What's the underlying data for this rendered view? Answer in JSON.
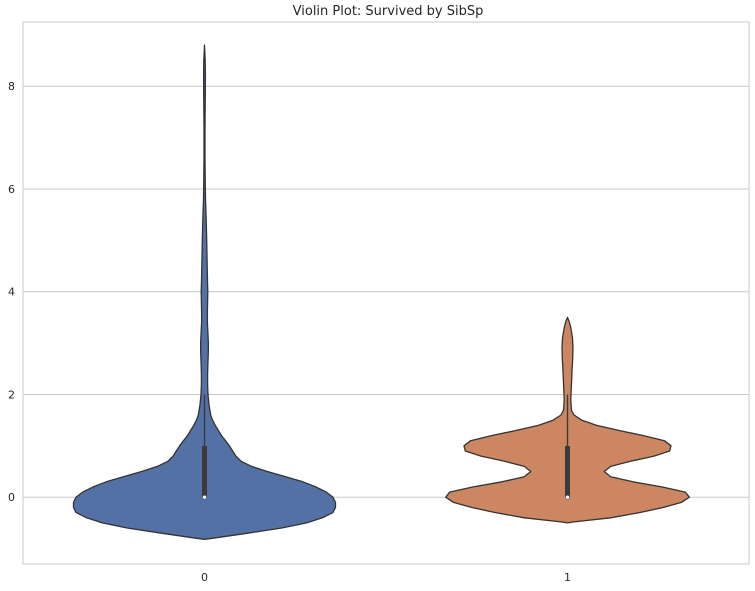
{
  "chart_data": {
    "type": "violin",
    "title": "Violin Plot: Survived by SibSp",
    "xlabel": "",
    "ylabel": "",
    "categories": [
      "0",
      "1"
    ],
    "y_ticks": [
      0,
      2,
      4,
      6,
      8
    ],
    "ylim": [
      -1.3,
      9.25
    ],
    "grid": true,
    "grid_axis": "y",
    "colors": [
      "#5471a5",
      "#cc8762"
    ],
    "edge_color": "#333333",
    "series": [
      {
        "category": "0",
        "color": "#5471a5",
        "density": [
          [
            -0.82,
            0.0
          ],
          [
            -0.8,
            0.06
          ],
          [
            -0.7,
            0.33
          ],
          [
            -0.6,
            0.59
          ],
          [
            -0.5,
            0.78
          ],
          [
            -0.4,
            0.9
          ],
          [
            -0.3,
            0.98
          ],
          [
            -0.2,
            1.0
          ],
          [
            -0.1,
            1.0
          ],
          [
            0.0,
            0.98
          ],
          [
            0.1,
            0.93
          ],
          [
            0.2,
            0.85
          ],
          [
            0.3,
            0.75
          ],
          [
            0.4,
            0.62
          ],
          [
            0.5,
            0.48
          ],
          [
            0.6,
            0.36
          ],
          [
            0.7,
            0.28
          ],
          [
            0.8,
            0.24
          ],
          [
            0.9,
            0.215
          ],
          [
            1.0,
            0.19
          ],
          [
            1.1,
            0.16
          ],
          [
            1.2,
            0.13
          ],
          [
            1.3,
            0.105
          ],
          [
            1.4,
            0.082
          ],
          [
            1.5,
            0.062
          ],
          [
            1.6,
            0.047
          ],
          [
            1.8,
            0.034
          ],
          [
            2.0,
            0.027
          ],
          [
            2.2,
            0.024
          ],
          [
            2.4,
            0.024
          ],
          [
            2.6,
            0.026
          ],
          [
            2.8,
            0.029
          ],
          [
            3.0,
            0.03
          ],
          [
            3.2,
            0.026
          ],
          [
            3.4,
            0.022
          ],
          [
            3.6,
            0.022
          ],
          [
            3.8,
            0.024
          ],
          [
            4.0,
            0.025
          ],
          [
            4.2,
            0.023
          ],
          [
            4.6,
            0.02
          ],
          [
            5.0,
            0.017
          ],
          [
            5.4,
            0.013
          ],
          [
            5.8,
            0.008
          ],
          [
            6.2,
            0.005
          ],
          [
            6.6,
            0.004
          ],
          [
            7.2,
            0.004
          ],
          [
            7.8,
            0.006
          ],
          [
            8.2,
            0.007
          ],
          [
            8.5,
            0.005
          ],
          [
            8.8,
            0.0
          ]
        ],
        "median": 0,
        "q1": 0,
        "q3": 1,
        "whisker_low": 0,
        "whisker_high": 2.0,
        "max": 8.8
      },
      {
        "category": "1",
        "color": "#cc8762",
        "density": [
          [
            -0.5,
            0.0
          ],
          [
            -0.48,
            0.05
          ],
          [
            -0.4,
            0.33
          ],
          [
            -0.3,
            0.55
          ],
          [
            -0.2,
            0.73
          ],
          [
            -0.1,
            0.87
          ],
          [
            0.0,
            0.93
          ],
          [
            0.1,
            0.9
          ],
          [
            0.2,
            0.72
          ],
          [
            0.3,
            0.5
          ],
          [
            0.4,
            0.33
          ],
          [
            0.5,
            0.28
          ],
          [
            0.6,
            0.33
          ],
          [
            0.7,
            0.48
          ],
          [
            0.8,
            0.66
          ],
          [
            0.9,
            0.78
          ],
          [
            1.0,
            0.79
          ],
          [
            1.1,
            0.74
          ],
          [
            1.2,
            0.58
          ],
          [
            1.3,
            0.39
          ],
          [
            1.4,
            0.22
          ],
          [
            1.5,
            0.11
          ],
          [
            1.6,
            0.05
          ],
          [
            1.7,
            0.03
          ],
          [
            1.9,
            0.025
          ],
          [
            2.1,
            0.028
          ],
          [
            2.3,
            0.032
          ],
          [
            2.5,
            0.035
          ],
          [
            2.7,
            0.04
          ],
          [
            2.9,
            0.042
          ],
          [
            3.1,
            0.038
          ],
          [
            3.3,
            0.025
          ],
          [
            3.4,
            0.015
          ],
          [
            3.5,
            0.0
          ]
        ],
        "median": 0,
        "q1": 0,
        "q3": 1,
        "whisker_low": 0,
        "whisker_high": 2.0,
        "max": 3.5
      }
    ]
  }
}
